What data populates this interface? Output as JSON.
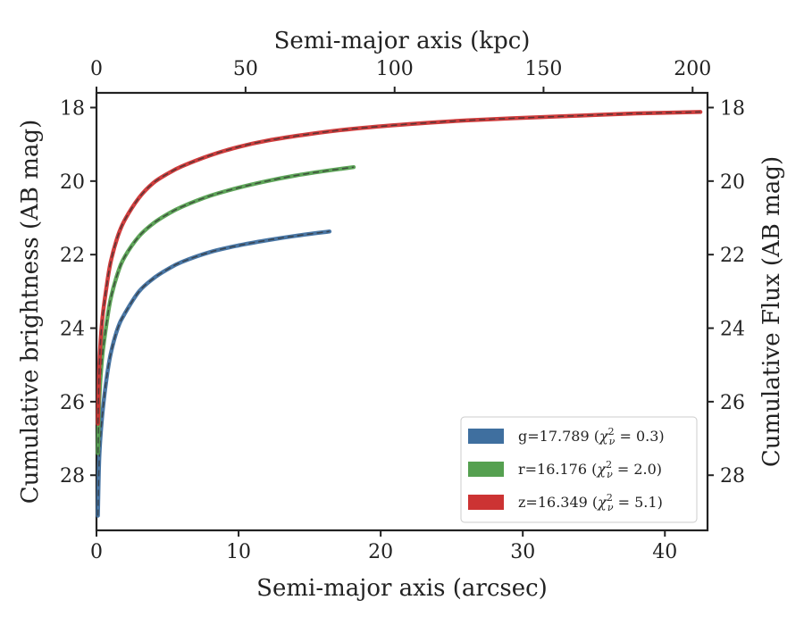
{
  "chart_data": {
    "type": "line",
    "xlabel_bottom": "Semi-major axis (arcsec)",
    "xlabel_top": "Semi-major axis (kpc)",
    "ylabel_left": "Cumulative brightness (AB mag)",
    "ylabel_right": "Cumulative Flux (AB mag)",
    "xlim": [
      0,
      43
    ],
    "ylim": [
      29.5,
      17.6
    ],
    "x_ticks_bottom": [
      0,
      10,
      20,
      30,
      40
    ],
    "x_ticks_top": [
      0,
      50,
      100,
      150,
      200
    ],
    "x_ticks_top_positions_arcsec": [
      0,
      10.49,
      20.98,
      31.46,
      41.95
    ],
    "y_ticks": [
      18,
      20,
      22,
      24,
      26,
      28
    ],
    "grid": false,
    "legend_position": "lower-right",
    "series": [
      {
        "name": "g=17.789 (χ²ᵥ = 0.3)",
        "legend_main": "g=17.789 (",
        "legend_chi": "χ",
        "legend_exp": "2",
        "legend_sub": "ν",
        "legend_value": " = 0.3)",
        "color": "#3f6f9f",
        "x": [
          0.1,
          0.2,
          0.4,
          0.7,
          1,
          1.5,
          2,
          3,
          4,
          5,
          6,
          8,
          10,
          12,
          14,
          16.4
        ],
        "y": [
          29.1,
          27.5,
          26.4,
          25.4,
          24.7,
          24.0,
          23.6,
          23.0,
          22.65,
          22.4,
          22.2,
          21.93,
          21.75,
          21.61,
          21.49,
          21.37
        ]
      },
      {
        "name": "r=16.176 (χ²ᵥ = 2.0)",
        "legend_main": "r=16.176 (",
        "legend_chi": "χ",
        "legend_exp": "2",
        "legend_sub": "ν",
        "legend_value": " = 2.0)",
        "color": "#55a050",
        "x": [
          0.1,
          0.2,
          0.4,
          0.7,
          1,
          1.5,
          2,
          3,
          4,
          5,
          6,
          8,
          10,
          12,
          14,
          16,
          18.1
        ],
        "y": [
          27.4,
          25.9,
          24.8,
          23.9,
          23.2,
          22.5,
          22.05,
          21.5,
          21.15,
          20.9,
          20.7,
          20.4,
          20.18,
          20.0,
          19.85,
          19.73,
          19.62
        ]
      },
      {
        "name": "z=16.349 (χ²ᵥ = 5.1)",
        "legend_main": "z=16.349 (",
        "legend_chi": "χ",
        "legend_exp": "2",
        "legend_sub": "ν",
        "legend_value": " = 5.1)",
        "color": "#cc3333",
        "x": [
          0.1,
          0.2,
          0.4,
          0.7,
          1,
          1.5,
          2,
          3,
          4,
          5,
          6,
          8,
          10,
          12,
          15,
          18,
          22,
          26,
          30,
          34,
          38,
          42.5
        ],
        "y": [
          26.6,
          25.0,
          23.8,
          22.9,
          22.2,
          21.5,
          21.05,
          20.45,
          20.05,
          19.8,
          19.6,
          19.3,
          19.07,
          18.9,
          18.72,
          18.58,
          18.45,
          18.35,
          18.28,
          18.22,
          18.16,
          18.12
        ]
      }
    ]
  }
}
